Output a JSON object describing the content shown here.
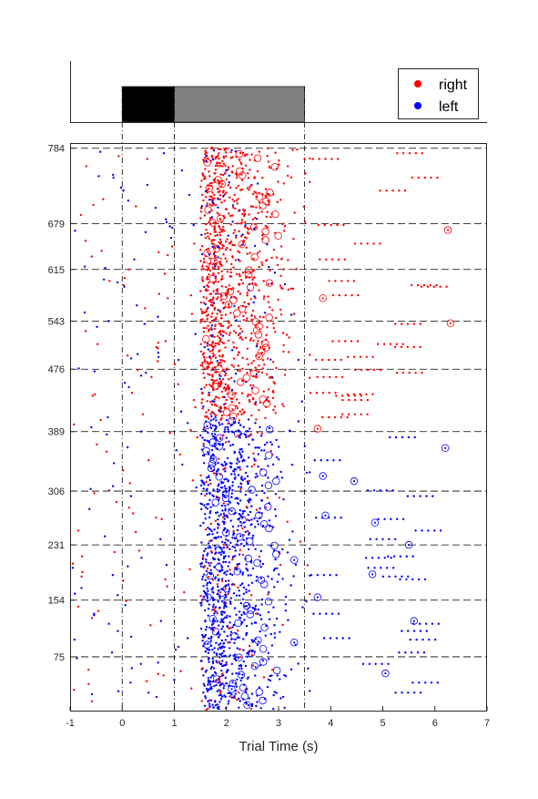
{
  "chart_data": {
    "type": "scatter",
    "title": "",
    "xlabel": "Trial Time (s)",
    "ylabel": "",
    "xlim": [
      -1,
      7
    ],
    "ylim": [
      0,
      790
    ],
    "x_ticks": [
      -1,
      0,
      1,
      2,
      3,
      4,
      5,
      6,
      7
    ],
    "y_ticks": [
      75,
      154,
      231,
      306,
      389,
      476,
      543,
      615,
      679,
      784
    ],
    "trial_blocks": [
      {
        "from": 0,
        "to": 406,
        "choice": "left"
      },
      {
        "from": 406,
        "to": 784,
        "choice": "right"
      }
    ],
    "event_lines_x": [
      0,
      1,
      3.5
    ],
    "stimulus_bar": {
      "segments": [
        {
          "start": 0,
          "end": 1,
          "color": "#000000"
        },
        {
          "start": 1,
          "end": 3.5,
          "color": "#808080"
        }
      ]
    },
    "series": [
      {
        "name": "right",
        "color": "#ff0000"
      },
      {
        "name": "left",
        "color": "#0000ff"
      }
    ],
    "circled_events": [
      {
        "trial": 30,
        "time": 2.1,
        "choice": "left"
      },
      {
        "trial": 52,
        "time": 5.05,
        "choice": "left"
      },
      {
        "trial": 95,
        "time": 3.3,
        "choice": "left"
      },
      {
        "trial": 125,
        "time": 5.6,
        "choice": "left"
      },
      {
        "trial": 158,
        "time": 3.75,
        "choice": "left"
      },
      {
        "trial": 190,
        "time": 4.8,
        "choice": "left"
      },
      {
        "trial": 210,
        "time": 3.3,
        "choice": "left"
      },
      {
        "trial": 231,
        "time": 5.5,
        "choice": "left"
      },
      {
        "trial": 262,
        "time": 4.85,
        "choice": "left"
      },
      {
        "trial": 272,
        "time": 3.9,
        "choice": "left"
      },
      {
        "trial": 320,
        "time": 4.45,
        "choice": "left"
      },
      {
        "trial": 327,
        "time": 3.85,
        "choice": "left"
      },
      {
        "trial": 366,
        "time": 6.2,
        "choice": "left"
      },
      {
        "trial": 393,
        "time": 3.75,
        "choice": "right"
      },
      {
        "trial": 540,
        "time": 6.3,
        "choice": "right"
      },
      {
        "trial": 575,
        "time": 3.85,
        "choice": "right"
      },
      {
        "trial": 670,
        "time": 6.25,
        "choice": "right"
      }
    ],
    "legend": {
      "entries": [
        "right",
        "left"
      ],
      "location": "top-right"
    }
  }
}
